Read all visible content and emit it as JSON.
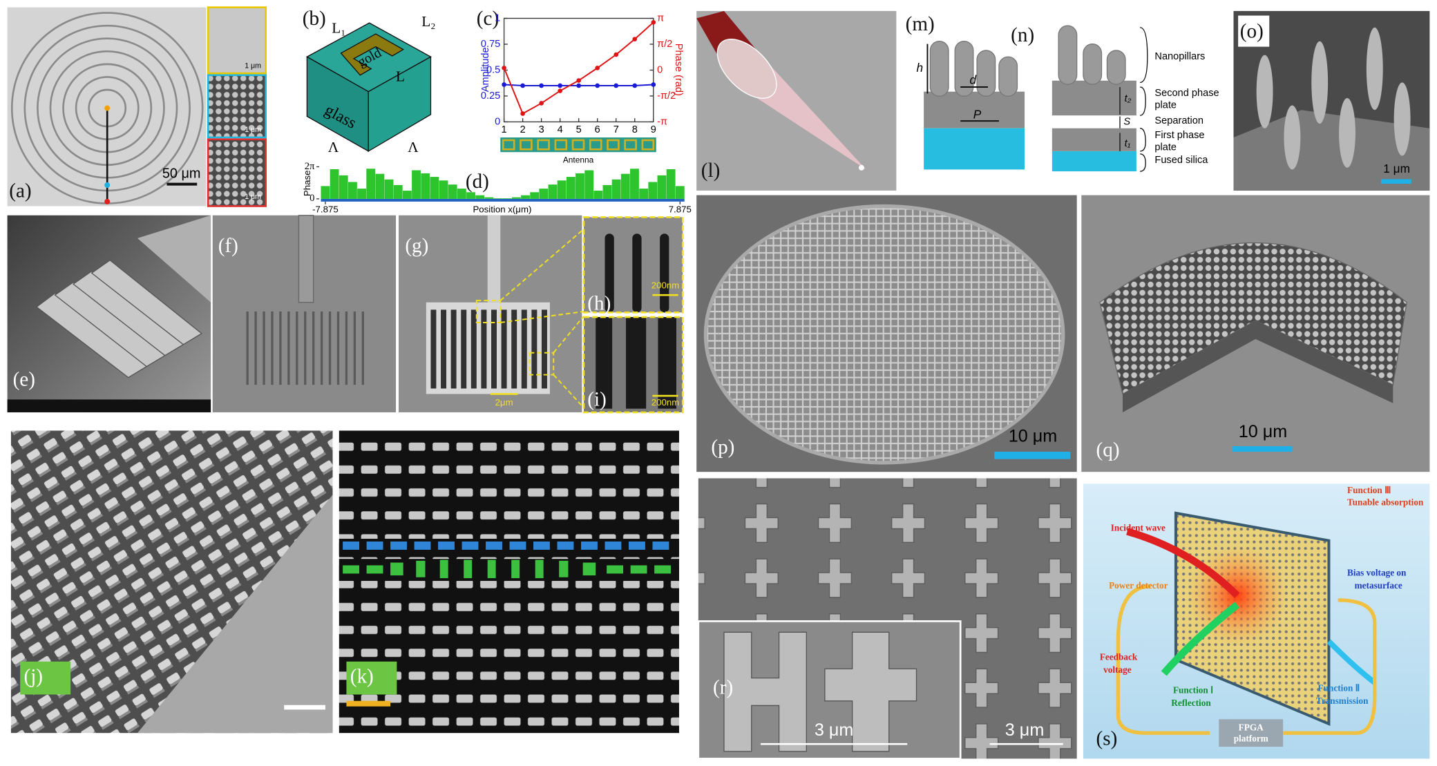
{
  "labels": [
    "(a)",
    "(b)",
    "(c)",
    "(d)",
    "(e)",
    "(f)",
    "(g)",
    "(h)",
    "(i)",
    "(j)",
    "(k)",
    "(l)",
    "(m)",
    "(n)",
    "(o)",
    "(p)",
    "(q)",
    "(r)",
    "(s)"
  ],
  "scale_bars": {
    "a": "50 μm",
    "a_inset_1": "1 μm",
    "a_inset_2": "1 μm",
    "a_inset_3": "1 μm",
    "g": "2μm",
    "h": "200nm",
    "i": "200nm",
    "o": "1 μm",
    "p": "10 μm",
    "q": "10 μm",
    "r_inset": "3 μm",
    "r": "3 μm"
  },
  "panel_b": {
    "l1": "L₁",
    "l2": "L₂",
    "gold": "gold",
    "glass": "glass",
    "l": "L",
    "lambda_1": "Λ",
    "lambda_2": "Λ"
  },
  "panel_c": {
    "type": "line",
    "x": [
      1,
      2,
      3,
      4,
      5,
      6,
      7,
      8,
      9
    ],
    "xlim": [
      1,
      9
    ],
    "xticks": [
      1,
      2,
      3,
      4,
      5,
      6,
      7,
      8,
      9
    ],
    "ylim": [
      0,
      1
    ],
    "yticks": [
      0,
      0.25,
      0.5,
      0.75,
      1
    ],
    "y2lim": [
      -3.1416,
      3.1416
    ],
    "y2ticks": [
      {
        "value": -3.1416,
        "label": "-π"
      },
      {
        "value": -1.5708,
        "label": "-π/2"
      },
      0,
      {
        "value": 1.5708,
        "label": "π/2"
      },
      {
        "value": 3.1416,
        "label": "π"
      }
    ],
    "y_label": "Amplitude",
    "y2_label": "Phase (rad)",
    "x_label": "Antenna",
    "series": [
      {
        "color": "#1a1ad6",
        "values": [
          0.36,
          0.35,
          0.35,
          0.35,
          0.35,
          0.35,
          0.35,
          0.35,
          0.36
        ]
      },
      {
        "color": "#e01414",
        "axis": "y2",
        "values": [
          0.13,
          -2.64,
          -2.01,
          -1.26,
          -0.63,
          0.13,
          0.94,
          1.88,
          2.9
        ]
      }
    ]
  },
  "panel_d": {
    "type": "bar",
    "color": "#2dc42d",
    "y_label": "Phase",
    "x_label": "Position x(μm)",
    "xlim": [
      -7.875,
      7.875
    ],
    "xticks": [
      -7.875,
      7.875
    ],
    "ylim": [
      0,
      6.2832
    ],
    "yticks": [
      0,
      {
        "value": 6.2832,
        "label": "2π"
      }
    ],
    "x": [
      -7.875,
      -7.471,
      -7.067,
      -6.663,
      -6.26,
      -5.856,
      -5.452,
      -5.048,
      -4.644,
      -4.24,
      -3.837,
      -3.433,
      -3.029,
      -2.625,
      -2.221,
      -1.817,
      -1.413,
      -1.01,
      -0.606,
      -0.202,
      0.202,
      0.606,
      1.01,
      1.413,
      1.817,
      2.221,
      2.625,
      3.029,
      3.433,
      3.837,
      4.24,
      4.644,
      5.048,
      5.452,
      5.856,
      6.26,
      6.663,
      7.067,
      7.471,
      7.875
    ],
    "values": [
      2.5,
      5.8,
      4.6,
      3.3,
      2.0,
      5.9,
      4.9,
      3.8,
      2.7,
      1.6,
      5.6,
      5.0,
      4.3,
      3.6,
      2.8,
      2.0,
      1.3,
      0.7,
      0.3,
      0.1,
      0.1,
      0.3,
      0.7,
      1.3,
      2.0,
      2.8,
      3.6,
      4.3,
      5.0,
      5.6,
      1.6,
      2.7,
      3.8,
      4.9,
      5.9,
      2.0,
      3.3,
      4.6,
      5.8,
      2.5
    ]
  },
  "panel_mn": {
    "h": "h",
    "d": "d",
    "p": "P",
    "t2": "t₂",
    "s": "S",
    "t1": "t₁",
    "nanopillars": "Nanopillars",
    "second_1": "Second phase",
    "second_2": "plate",
    "separation": "Separation",
    "first_1": "First phase",
    "first_2": "plate",
    "silica": "Fused silica"
  },
  "panel_s": {
    "incident": "Incident wave",
    "f3_1": "Function Ⅲ",
    "f3_2": "Tunable absorption",
    "detector": "Power detector",
    "bias_1": "Bias voltage on",
    "bias_2": "metasurface",
    "feedback_1": "Feedback",
    "feedback_2": "voltage",
    "f1_1": "Function Ⅰ",
    "f1_2": "Reflection",
    "f2_1": "Function Ⅱ",
    "f2_2": "Transmission",
    "fpga_1": "FPGA",
    "fpga_2": "platform"
  }
}
